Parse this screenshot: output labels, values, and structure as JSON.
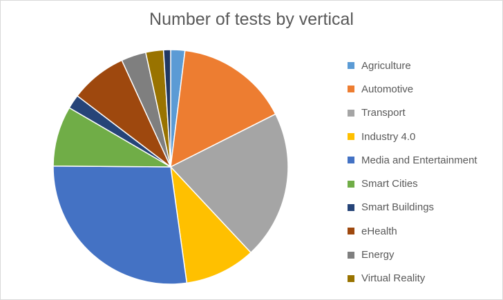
{
  "chart_data": {
    "type": "pie",
    "title": "Number of tests by vertical",
    "legend_position": "right",
    "start_angle_deg": 0,
    "direction": "clockwise",
    "slices": [
      {
        "name": "Agriculture",
        "value": 2,
        "color": "#5B9BD5"
      },
      {
        "name": "Automotive",
        "value": 16,
        "color": "#ED7D31"
      },
      {
        "name": "Transport",
        "value": 21,
        "color": "#A5A5A5"
      },
      {
        "name": "Industry 4.0",
        "value": 10,
        "color": "#FFC000"
      },
      {
        "name": "Media and Entertainment",
        "value": 28,
        "color": "#4472C4"
      },
      {
        "name": "Smart Cities",
        "value": 8.5,
        "color": "#70AD47"
      },
      {
        "name": "Smart Buildings",
        "value": 2,
        "color": "#264478"
      },
      {
        "name": "eHealth",
        "value": 8,
        "color": "#9E480E"
      },
      {
        "name": "Energy",
        "value": 3.5,
        "color": "#7F7F7F"
      },
      {
        "name": "Virtual Reality",
        "value": 2.5,
        "color": "#997300"
      },
      {
        "name": "",
        "value": 1,
        "color": "#203864"
      }
    ],
    "legend": [
      {
        "name": "Agriculture",
        "color": "#5B9BD5"
      },
      {
        "name": "Automotive",
        "color": "#ED7D31"
      },
      {
        "name": "Transport",
        "color": "#A5A5A5"
      },
      {
        "name": "Industry 4.0",
        "color": "#FFC000"
      },
      {
        "name": "Media and Entertainment",
        "color": "#4472C4"
      },
      {
        "name": "Smart Cities",
        "color": "#70AD47"
      },
      {
        "name": "Smart Buildings",
        "color": "#264478"
      },
      {
        "name": "eHealth",
        "color": "#9E480E"
      },
      {
        "name": "Energy",
        "color": "#7F7F7F"
      },
      {
        "name": "Virtual Reality",
        "color": "#997300"
      }
    ]
  }
}
